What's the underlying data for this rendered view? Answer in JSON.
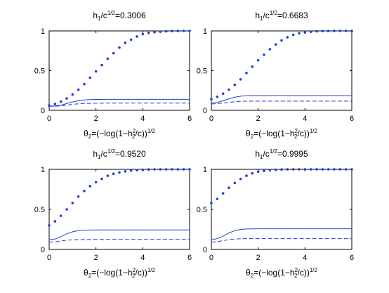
{
  "chart_data": [
    {
      "type": "line",
      "title_parts": {
        "base": "h",
        "sub": "1",
        "mid": "/c",
        "sup": "1/2",
        "tail": "=0.3006"
      },
      "xlabel_parts": {
        "a": "θ",
        "b": "2",
        "c": "=(−log(1−h",
        "d": "2",
        "e": "2",
        "f": "/c))",
        "g": "1/2"
      },
      "xlim": [
        0,
        6
      ],
      "ylim": [
        0,
        1
      ],
      "xticks": [
        "0",
        "2",
        "4",
        "6"
      ],
      "yticks": [
        "0",
        "0.5",
        "1"
      ],
      "grid": false,
      "series": [
        {
          "style": "dotted",
          "color": "#1f3fd9",
          "x": [
            0,
            0.25,
            0.5,
            0.75,
            1,
            1.25,
            1.5,
            1.75,
            2,
            2.25,
            2.5,
            2.75,
            3,
            3.25,
            3.5,
            3.75,
            4,
            4.25,
            4.5,
            4.75,
            5,
            5.25,
            5.5,
            5.75,
            6
          ],
          "y": [
            0.06,
            0.08,
            0.11,
            0.15,
            0.2,
            0.26,
            0.33,
            0.41,
            0.49,
            0.57,
            0.65,
            0.72,
            0.79,
            0.85,
            0.89,
            0.93,
            0.96,
            0.975,
            0.985,
            0.99,
            0.995,
            0.998,
            0.999,
            1,
            1
          ]
        },
        {
          "style": "solid",
          "color": "#1f3fd9",
          "x": [
            0,
            0.25,
            0.5,
            0.75,
            1,
            1.25,
            1.5,
            1.75,
            2,
            2.5,
            3,
            4,
            5,
            6
          ],
          "y": [
            0.05,
            0.055,
            0.065,
            0.085,
            0.105,
            0.12,
            0.13,
            0.135,
            0.137,
            0.138,
            0.138,
            0.138,
            0.138,
            0.138
          ]
        },
        {
          "style": "dashed",
          "color": "#1f3fd9",
          "x": [
            0,
            0.25,
            0.5,
            0.75,
            1,
            1.25,
            1.5,
            1.75,
            2,
            2.5,
            3,
            4,
            5,
            6
          ],
          "y": [
            0.05,
            0.05,
            0.055,
            0.065,
            0.075,
            0.082,
            0.086,
            0.088,
            0.089,
            0.09,
            0.09,
            0.09,
            0.09,
            0.09
          ]
        }
      ]
    },
    {
      "type": "line",
      "title_parts": {
        "base": "h",
        "sub": "1",
        "mid": "/c",
        "sup": "1/2",
        "tail": "=0.6683"
      },
      "xlabel_parts": {
        "a": "θ",
        "b": "2",
        "c": "=(−log(1−h",
        "d": "2",
        "e": "2",
        "f": "/c))",
        "g": "1/2"
      },
      "xlim": [
        0,
        6
      ],
      "ylim": [
        0,
        1
      ],
      "xticks": [
        "0",
        "2",
        "4",
        "6"
      ],
      "yticks": [
        "0",
        "0.5",
        "1"
      ],
      "grid": false,
      "series": [
        {
          "style": "dotted",
          "color": "#1f3fd9",
          "x": [
            0,
            0.25,
            0.5,
            0.75,
            1,
            1.25,
            1.5,
            1.75,
            2,
            2.25,
            2.5,
            2.75,
            3,
            3.25,
            3.5,
            3.75,
            4,
            4.25,
            4.5,
            4.75,
            5,
            5.25,
            5.5,
            5.75,
            6
          ],
          "y": [
            0.14,
            0.17,
            0.21,
            0.26,
            0.32,
            0.39,
            0.47,
            0.55,
            0.63,
            0.7,
            0.77,
            0.83,
            0.88,
            0.92,
            0.95,
            0.97,
            0.98,
            0.99,
            0.995,
            0.998,
            1,
            1,
            1,
            1,
            1
          ]
        },
        {
          "style": "solid",
          "color": "#1f3fd9",
          "x": [
            0,
            0.25,
            0.5,
            0.75,
            1,
            1.25,
            1.5,
            1.75,
            2,
            2.5,
            3,
            4,
            5,
            6
          ],
          "y": [
            0.09,
            0.1,
            0.12,
            0.145,
            0.165,
            0.178,
            0.183,
            0.185,
            0.185,
            0.185,
            0.185,
            0.185,
            0.185,
            0.185
          ]
        },
        {
          "style": "dashed",
          "color": "#1f3fd9",
          "x": [
            0,
            0.25,
            0.5,
            0.75,
            1,
            1.25,
            1.5,
            1.75,
            2,
            2.5,
            3,
            4,
            5,
            6
          ],
          "y": [
            0.08,
            0.085,
            0.09,
            0.1,
            0.108,
            0.113,
            0.115,
            0.116,
            0.116,
            0.116,
            0.116,
            0.116,
            0.116,
            0.116
          ]
        }
      ]
    },
    {
      "type": "line",
      "title_parts": {
        "base": "h",
        "sub": "1",
        "mid": "/c",
        "sup": "1/2",
        "tail": "=0.9520"
      },
      "xlabel_parts": {
        "a": "θ",
        "b": "2",
        "c": "=(−log(1−h",
        "d": "2",
        "e": "2",
        "f": "/c))",
        "g": "1/2"
      },
      "xlim": [
        0,
        6
      ],
      "ylim": [
        0,
        1
      ],
      "xticks": [
        "0",
        "2",
        "4",
        "6"
      ],
      "yticks": [
        "0",
        "0.5",
        "1"
      ],
      "grid": false,
      "series": [
        {
          "style": "dotted",
          "color": "#1f3fd9",
          "x": [
            0,
            0.25,
            0.5,
            0.75,
            1,
            1.25,
            1.5,
            1.75,
            2,
            2.25,
            2.5,
            2.75,
            3,
            3.25,
            3.5,
            3.75,
            4,
            4.25,
            4.5,
            4.75,
            5,
            5.25,
            5.5,
            5.75,
            6
          ],
          "y": [
            0.3,
            0.35,
            0.42,
            0.5,
            0.58,
            0.66,
            0.73,
            0.79,
            0.84,
            0.88,
            0.92,
            0.945,
            0.96,
            0.975,
            0.985,
            0.99,
            0.995,
            0.998,
            1,
            1,
            1,
            1,
            1,
            1,
            1
          ]
        },
        {
          "style": "solid",
          "color": "#1f3fd9",
          "x": [
            0,
            0.25,
            0.5,
            0.75,
            1,
            1.25,
            1.5,
            1.75,
            2,
            2.5,
            3,
            4,
            5,
            6
          ],
          "y": [
            0.12,
            0.13,
            0.16,
            0.195,
            0.22,
            0.235,
            0.24,
            0.242,
            0.243,
            0.243,
            0.243,
            0.243,
            0.243,
            0.243
          ]
        },
        {
          "style": "dashed",
          "color": "#1f3fd9",
          "x": [
            0,
            0.25,
            0.5,
            0.75,
            1,
            1.25,
            1.5,
            1.75,
            2,
            2.5,
            3,
            4,
            5,
            6
          ],
          "y": [
            0.09,
            0.095,
            0.105,
            0.115,
            0.12,
            0.123,
            0.124,
            0.125,
            0.125,
            0.125,
            0.125,
            0.125,
            0.125,
            0.125
          ]
        }
      ]
    },
    {
      "type": "line",
      "title_parts": {
        "base": "h",
        "sub": "1",
        "mid": "/c",
        "sup": "1/2",
        "tail": "=0.9995"
      },
      "xlabel_parts": {
        "a": "θ",
        "b": "2",
        "c": "=(−log(1−h",
        "d": "2",
        "e": "2",
        "f": "/c))",
        "g": "1/2"
      },
      "xlim": [
        0,
        6
      ],
      "ylim": [
        0,
        1
      ],
      "xticks": [
        "0",
        "2",
        "4",
        "6"
      ],
      "yticks": [
        "0",
        "0.5",
        "1"
      ],
      "grid": false,
      "series": [
        {
          "style": "dotted",
          "color": "#1f3fd9",
          "x": [
            0,
            0.25,
            0.5,
            0.75,
            1,
            1.25,
            1.5,
            1.75,
            2,
            2.25,
            2.5,
            2.75,
            3,
            3.25,
            3.5,
            3.75,
            4,
            4.25,
            4.5,
            4.75,
            5,
            5.25,
            5.5,
            5.75,
            6
          ],
          "y": [
            0.58,
            0.63,
            0.7,
            0.77,
            0.83,
            0.88,
            0.92,
            0.95,
            0.97,
            0.98,
            0.99,
            0.995,
            0.998,
            1,
            1,
            1,
            1,
            1,
            1,
            1,
            1,
            1,
            1,
            1,
            1
          ]
        },
        {
          "style": "solid",
          "color": "#1f3fd9",
          "x": [
            0,
            0.25,
            0.5,
            0.75,
            1,
            1.25,
            1.5,
            1.75,
            2,
            2.5,
            3,
            4,
            5,
            6
          ],
          "y": [
            0.12,
            0.135,
            0.165,
            0.205,
            0.235,
            0.25,
            0.255,
            0.257,
            0.258,
            0.258,
            0.258,
            0.258,
            0.258,
            0.258
          ]
        },
        {
          "style": "dashed",
          "color": "#1f3fd9",
          "x": [
            0,
            0.25,
            0.5,
            0.75,
            1,
            1.25,
            1.5,
            1.75,
            2,
            2.5,
            3,
            4,
            5,
            6
          ],
          "y": [
            0.09,
            0.098,
            0.11,
            0.122,
            0.13,
            0.133,
            0.135,
            0.135,
            0.135,
            0.135,
            0.135,
            0.135,
            0.135,
            0.135
          ]
        }
      ]
    }
  ]
}
